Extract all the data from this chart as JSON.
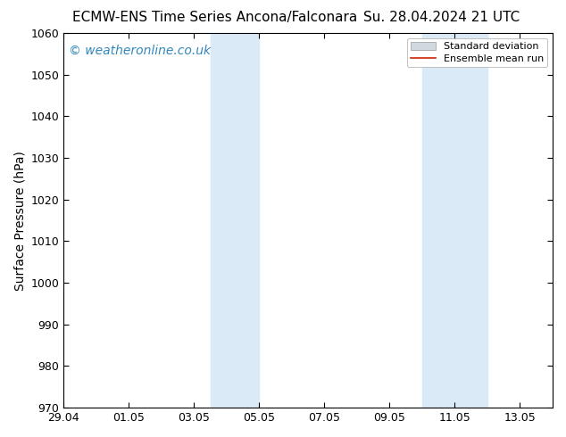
{
  "title": "ECMW-ENS Time Series Ancona/Falconara       Su. 28.04.2024 21 UTC",
  "title_left": "ECMW-ENS Time Series Ancona/Falconara",
  "title_right": "Su. 28.04.2024 21 UTC",
  "ylabel": "Surface Pressure (hPa)",
  "ylim": [
    970,
    1060
  ],
  "yticks": [
    970,
    980,
    990,
    1000,
    1010,
    1020,
    1030,
    1040,
    1050,
    1060
  ],
  "xlim": [
    0,
    15
  ],
  "xtick_labels": [
    "29.04",
    "01.05",
    "03.05",
    "05.05",
    "07.05",
    "09.05",
    "11.05",
    "13.05"
  ],
  "xtick_positions": [
    0,
    2,
    4,
    6,
    8,
    10,
    12,
    14
  ],
  "shaded_regions": [
    {
      "x_start": 4.5,
      "x_end": 6.0
    },
    {
      "x_start": 11.0,
      "x_end": 13.0
    }
  ],
  "shaded_color": "#daeaf7",
  "watermark_text": "© weatheronline.co.uk",
  "watermark_color": "#3388bb",
  "legend_std_color": "#d0d8e0",
  "legend_mean_color": "#cc2200",
  "background_color": "#ffffff",
  "plot_bg_color": "#ffffff",
  "title_fontsize": 11,
  "axis_label_fontsize": 10,
  "tick_fontsize": 9,
  "watermark_fontsize": 10
}
